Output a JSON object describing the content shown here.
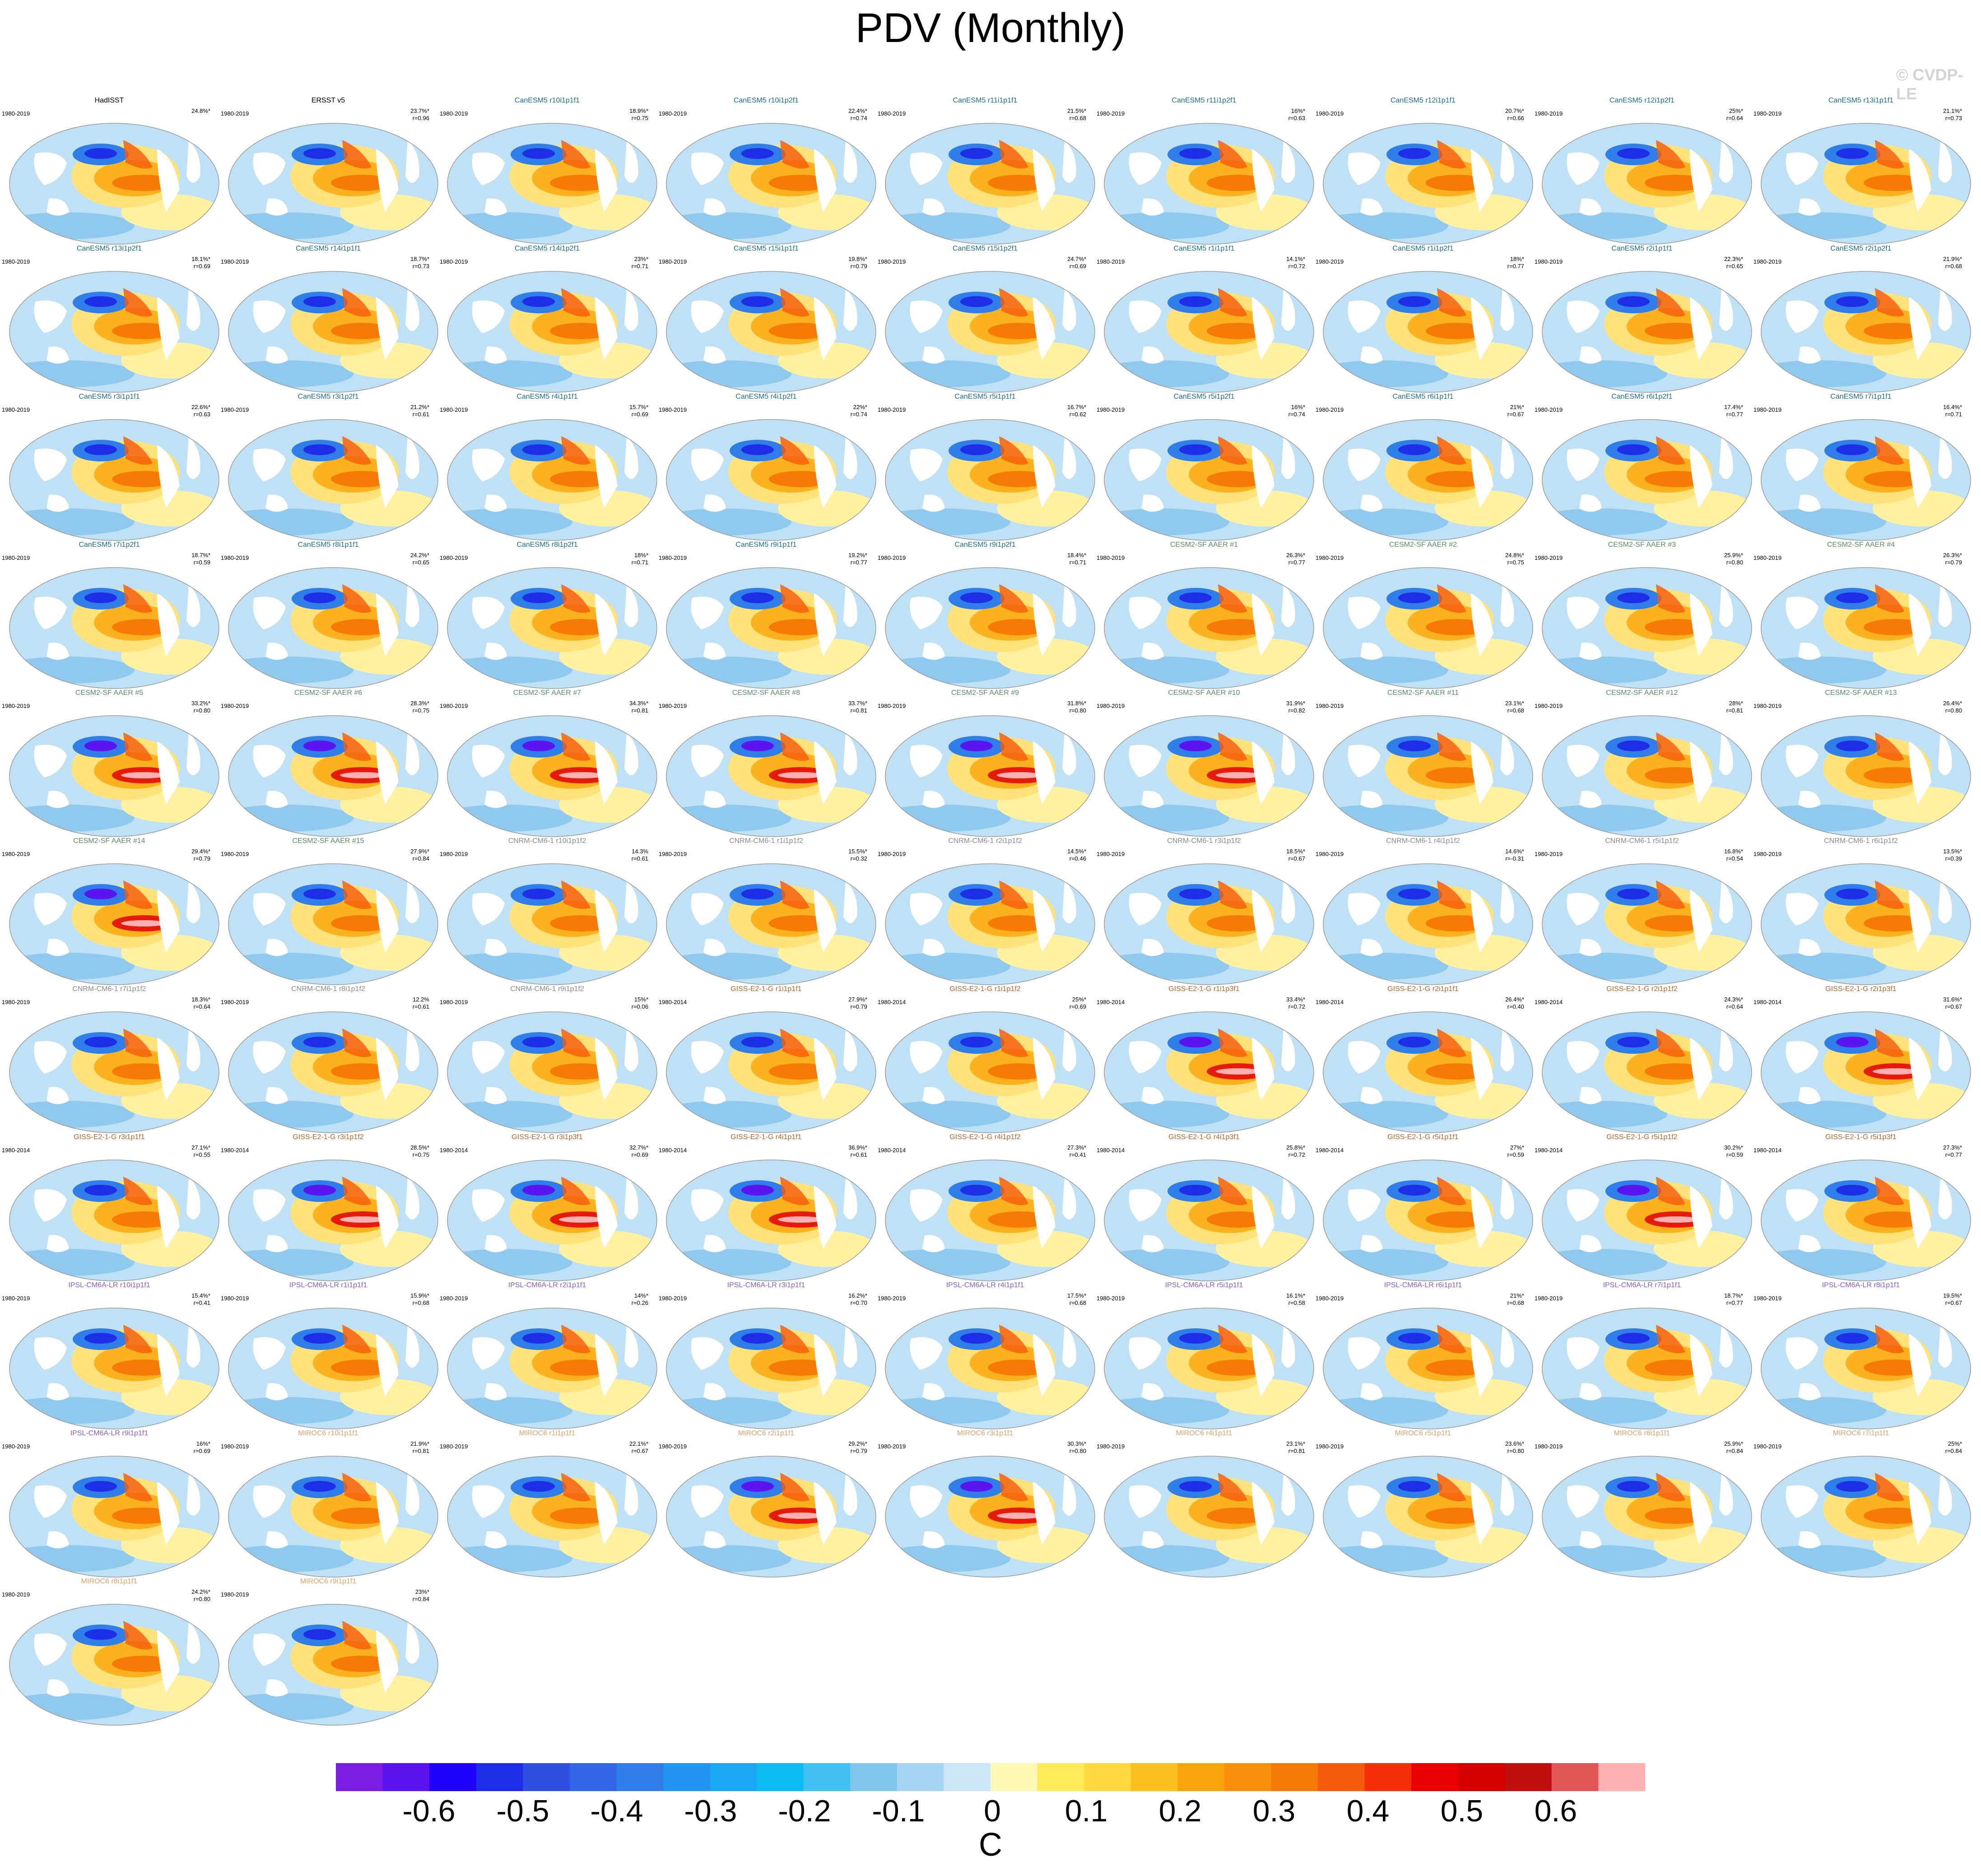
{
  "title": "PDV (Monthly)",
  "watermark": "© CVDP-LE",
  "chart_data": {
    "type": "heatmap",
    "description_kind": "panel grid of global SST regression maps",
    "panels": [
      {
        "title": "HadISST",
        "period": "1980-2019",
        "pct": "24.8%*",
        "r": "",
        "color": "#000000"
      },
      {
        "title": "ERSST v5",
        "period": "1980-2019",
        "pct": "23.7%*",
        "r": "r=0.96",
        "color": "#000000"
      },
      {
        "title": "CanESM5 r10i1p1f1",
        "period": "1980-2019",
        "pct": "18.9%*",
        "r": "r=0.75",
        "color": "#1a6f8c"
      },
      {
        "title": "CanESM5 r10i1p2f1",
        "period": "1980-2019",
        "pct": "22.4%*",
        "r": "r=0.74",
        "color": "#1a6f8c"
      },
      {
        "title": "CanESM5 r11i1p1f1",
        "period": "1980-2019",
        "pct": "21.5%*",
        "r": "r=0.68",
        "color": "#1a6f8c"
      },
      {
        "title": "CanESM5 r11i1p2f1",
        "period": "1980-2019",
        "pct": "16%*",
        "r": "r=0.63",
        "color": "#1a6f8c"
      },
      {
        "title": "CanESM5 r12i1p1f1",
        "period": "1980-2019",
        "pct": "20.7%*",
        "r": "r=0.66",
        "color": "#1a6f8c"
      },
      {
        "title": "CanESM5 r12i1p2f1",
        "period": "1980-2019",
        "pct": "25%*",
        "r": "r=0.64",
        "color": "#1a6f8c"
      },
      {
        "title": "CanESM5 r13i1p1f1",
        "period": "1980-2019",
        "pct": "21.1%*",
        "r": "r=0.73",
        "color": "#1a6f8c"
      },
      {
        "title": "CanESM5 r13i1p2f1",
        "period": "1980-2019",
        "pct": "18.1%*",
        "r": "r=0.69",
        "color": "#1a6f8c"
      },
      {
        "title": "CanESM5 r14i1p1f1",
        "period": "1980-2019",
        "pct": "18.7%*",
        "r": "r=0.73",
        "color": "#1a6f8c"
      },
      {
        "title": "CanESM5 r14i1p2f1",
        "period": "1980-2019",
        "pct": "23%*",
        "r": "r=0.71",
        "color": "#1a6f8c"
      },
      {
        "title": "CanESM5 r15i1p1f1",
        "period": "1980-2019",
        "pct": "19.8%*",
        "r": "r=0.79",
        "color": "#1a6f8c"
      },
      {
        "title": "CanESM5 r15i1p2f1",
        "period": "1980-2019",
        "pct": "24.7%*",
        "r": "r=0.69",
        "color": "#1a6f8c"
      },
      {
        "title": "CanESM5 r1i1p1f1",
        "period": "1980-2019",
        "pct": "14.1%*",
        "r": "r=0.72",
        "color": "#1a6f8c"
      },
      {
        "title": "CanESM5 r1i1p2f1",
        "period": "1980-2019",
        "pct": "18%*",
        "r": "r=0.77",
        "color": "#1a6f8c"
      },
      {
        "title": "CanESM5 r2i1p1f1",
        "period": "1980-2019",
        "pct": "22.3%*",
        "r": "r=0.65",
        "color": "#1a6f8c"
      },
      {
        "title": "CanESM5 r2i1p2f1",
        "period": "1980-2019",
        "pct": "21.9%*",
        "r": "r=0.68",
        "color": "#1a6f8c"
      },
      {
        "title": "CanESM5 r3i1p1f1",
        "period": "1980-2019",
        "pct": "22.6%*",
        "r": "r=0.63",
        "color": "#1a6f8c"
      },
      {
        "title": "CanESM5 r3i1p2f1",
        "period": "1980-2019",
        "pct": "21.2%*",
        "r": "r=0.61",
        "color": "#1a6f8c"
      },
      {
        "title": "CanESM5 r4i1p1f1",
        "period": "1980-2019",
        "pct": "15.7%*",
        "r": "r=0.69",
        "color": "#1a6f8c"
      },
      {
        "title": "CanESM5 r4i1p2f1",
        "period": "1980-2019",
        "pct": "22%*",
        "r": "r=0.74",
        "color": "#1a6f8c"
      },
      {
        "title": "CanESM5 r5i1p1f1",
        "period": "1980-2019",
        "pct": "16.7%*",
        "r": "r=0.62",
        "color": "#1a6f8c"
      },
      {
        "title": "CanESM5 r5i1p2f1",
        "period": "1980-2019",
        "pct": "16%*",
        "r": "r=0.74",
        "color": "#1a6f8c"
      },
      {
        "title": "CanESM5 r6i1p1f1",
        "period": "1980-2019",
        "pct": "21%*",
        "r": "r=0.67",
        "color": "#1a6f8c"
      },
      {
        "title": "CanESM5 r6i1p2f1",
        "period": "1980-2019",
        "pct": "17.4%*",
        "r": "r=0.77",
        "color": "#1a6f8c"
      },
      {
        "title": "CanESM5 r7i1p1f1",
        "period": "1980-2019",
        "pct": "16.4%*",
        "r": "r=0.71",
        "color": "#1a6f8c"
      },
      {
        "title": "CanESM5 r7i1p2f1",
        "period": "1980-2019",
        "pct": "18.7%*",
        "r": "r=0.59",
        "color": "#1a6f8c"
      },
      {
        "title": "CanESM5 r8i1p1f1",
        "period": "1980-2019",
        "pct": "24.2%*",
        "r": "r=0.65",
        "color": "#1a6f8c"
      },
      {
        "title": "CanESM5 r8i1p2f1",
        "period": "1980-2019",
        "pct": "18%*",
        "r": "r=0.71",
        "color": "#1a6f8c"
      },
      {
        "title": "CanESM5 r9i1p1f1",
        "period": "1980-2019",
        "pct": "19.2%*",
        "r": "r=0.77",
        "color": "#1a6f8c"
      },
      {
        "title": "CanESM5 r9i1p2f1",
        "period": "1980-2019",
        "pct": "18.4%*",
        "r": "r=0.71",
        "color": "#1a6f8c"
      },
      {
        "title": "CESM2-SF AAER #1",
        "period": "1980-2019",
        "pct": "26.3%*",
        "r": "r=0.77",
        "color": "#5a8a6a"
      },
      {
        "title": "CESM2-SF AAER #2",
        "period": "1980-2019",
        "pct": "24.8%*",
        "r": "r=0.75",
        "color": "#5a8a6a"
      },
      {
        "title": "CESM2-SF AAER #3",
        "period": "1980-2019",
        "pct": "25.9%*",
        "r": "r=0.80",
        "color": "#5a8a6a"
      },
      {
        "title": "CESM2-SF AAER #4",
        "period": "1980-2019",
        "pct": "26.3%*",
        "r": "r=0.79",
        "color": "#5a8a6a"
      },
      {
        "title": "CESM2-SF AAER #5",
        "period": "1980-2019",
        "pct": "33.2%*",
        "r": "r=0.80",
        "color": "#5a8a6a"
      },
      {
        "title": "CESM2-SF AAER #6",
        "period": "1980-2019",
        "pct": "28.3%*",
        "r": "r=0.75",
        "color": "#5a8a6a"
      },
      {
        "title": "CESM2-SF AAER #7",
        "period": "1980-2019",
        "pct": "34.3%*",
        "r": "r=0.81",
        "color": "#5a8a6a"
      },
      {
        "title": "CESM2-SF AAER #8",
        "period": "1980-2019",
        "pct": "33.7%*",
        "r": "r=0.81",
        "color": "#5a8a6a"
      },
      {
        "title": "CESM2-SF AAER #9",
        "period": "1980-2019",
        "pct": "31.8%*",
        "r": "r=0.80",
        "color": "#5a8a6a"
      },
      {
        "title": "CESM2-SF AAER #10",
        "period": "1980-2019",
        "pct": "31.9%*",
        "r": "r=0.82",
        "color": "#5a8a6a"
      },
      {
        "title": "CESM2-SF AAER #11",
        "period": "1980-2019",
        "pct": "23.1%*",
        "r": "r=0.68",
        "color": "#5a8a6a"
      },
      {
        "title": "CESM2-SF AAER #12",
        "period": "1980-2019",
        "pct": "28%*",
        "r": "r=0.81",
        "color": "#5a8a6a"
      },
      {
        "title": "CESM2-SF AAER #13",
        "period": "1980-2019",
        "pct": "26.4%*",
        "r": "r=0.80",
        "color": "#5a8a6a"
      },
      {
        "title": "CESM2-SF AAER #14",
        "period": "1980-2019",
        "pct": "29.4%*",
        "r": "r=0.79",
        "color": "#5a8a6a"
      },
      {
        "title": "CESM2-SF AAER #15",
        "period": "1980-2019",
        "pct": "27.9%*",
        "r": "r=0.84",
        "color": "#5a8a6a"
      },
      {
        "title": "CNRM-CM6-1 r10i1p1f2",
        "period": "1980-2019",
        "pct": "14.3%",
        "r": "r=0.61",
        "color": "#8a8a8a"
      },
      {
        "title": "CNRM-CM6-1 r1i1p1f2",
        "period": "1980-2019",
        "pct": "15.5%*",
        "r": "r=0.32",
        "color": "#8a8a8a"
      },
      {
        "title": "CNRM-CM6-1 r2i1p1f2",
        "period": "1980-2019",
        "pct": "14.5%*",
        "r": "r=0.46",
        "color": "#8a8a8a"
      },
      {
        "title": "CNRM-CM6-1 r3i1p1f2",
        "period": "1980-2019",
        "pct": "18.5%*",
        "r": "r=0.67",
        "color": "#8a8a8a"
      },
      {
        "title": "CNRM-CM6-1 r4i1p1f2",
        "period": "1980-2019",
        "pct": "14.6%*",
        "r": "r=-0.31",
        "color": "#8a8a8a"
      },
      {
        "title": "CNRM-CM6-1 r5i1p1f2",
        "period": "1980-2019",
        "pct": "16.8%*",
        "r": "r=0.54",
        "color": "#8a8a8a"
      },
      {
        "title": "CNRM-CM6-1 r6i1p1f2",
        "period": "1980-2019",
        "pct": "13.5%*",
        "r": "r=0.39",
        "color": "#8a8a8a"
      },
      {
        "title": "CNRM-CM6-1 r7i1p1f2",
        "period": "1980-2019",
        "pct": "18.3%*",
        "r": "r=0.64",
        "color": "#8a8a8a"
      },
      {
        "title": "CNRM-CM6-1 r8i1p1f2",
        "period": "1980-2019",
        "pct": "12.2%",
        "r": "r=0.61",
        "color": "#8a8a8a"
      },
      {
        "title": "CNRM-CM6-1 r9i1p1f2",
        "period": "1980-2019",
        "pct": "15%*",
        "r": "r=0.06",
        "color": "#8a8a8a"
      },
      {
        "title": "GISS-E2-1-G r1i1p1f1",
        "period": "1980-2014",
        "pct": "27.9%*",
        "r": "r=0.79",
        "color": "#b5652d"
      },
      {
        "title": "GISS-E2-1-G r1i1p1f2",
        "period": "1980-2014",
        "pct": "25%*",
        "r": "r=0.69",
        "color": "#b5652d"
      },
      {
        "title": "GISS-E2-1-G r1i1p3f1",
        "period": "1980-2014",
        "pct": "33.4%*",
        "r": "r=0.72",
        "color": "#b5652d"
      },
      {
        "title": "GISS-E2-1-G r2i1p1f1",
        "period": "1980-2014",
        "pct": "26.4%*",
        "r": "r=0.40",
        "color": "#b5652d"
      },
      {
        "title": "GISS-E2-1-G r2i1p1f2",
        "period": "1980-2014",
        "pct": "24.3%*",
        "r": "r=0.64",
        "color": "#b5652d"
      },
      {
        "title": "GISS-E2-1-G r2i1p3f1",
        "period": "1980-2014",
        "pct": "31.6%*",
        "r": "r=0.67",
        "color": "#b5652d"
      },
      {
        "title": "GISS-E2-1-G r3i1p1f1",
        "period": "1980-2014",
        "pct": "27.1%*",
        "r": "r=0.55",
        "color": "#b5652d"
      },
      {
        "title": "GISS-E2-1-G r3i1p1f2",
        "period": "1980-2014",
        "pct": "28.5%*",
        "r": "r=0.75",
        "color": "#b5652d"
      },
      {
        "title": "GISS-E2-1-G r3i1p3f1",
        "period": "1980-2014",
        "pct": "32.7%*",
        "r": "r=0.69",
        "color": "#b5652d"
      },
      {
        "title": "GISS-E2-1-G r4i1p1f1",
        "period": "1980-2014",
        "pct": "36.9%*",
        "r": "r=0.61",
        "color": "#b5652d"
      },
      {
        "title": "GISS-E2-1-G r4i1p1f2",
        "period": "1980-2014",
        "pct": "27.3%*",
        "r": "r=0.41",
        "color": "#b5652d"
      },
      {
        "title": "GISS-E2-1-G r4i1p3f1",
        "period": "1980-2014",
        "pct": "25.8%*",
        "r": "r=0.72",
        "color": "#b5652d"
      },
      {
        "title": "GISS-E2-1-G r5i1p1f1",
        "period": "1980-2014",
        "pct": "27%*",
        "r": "r=0.59",
        "color": "#b5652d"
      },
      {
        "title": "GISS-E2-1-G r5i1p1f2",
        "period": "1980-2014",
        "pct": "30.2%*",
        "r": "r=0.59",
        "color": "#b5652d"
      },
      {
        "title": "GISS-E2-1-G r5i1p3f1",
        "period": "1980-2014",
        "pct": "27.3%*",
        "r": "r=0.77",
        "color": "#b5652d"
      },
      {
        "title": "IPSL-CM6A-LR r10i1p1f1",
        "period": "1980-2019",
        "pct": "15.4%*",
        "r": "r=0.41",
        "color": "#8a5ad0"
      },
      {
        "title": "IPSL-CM6A-LR r1i1p1f1",
        "period": "1980-2019",
        "pct": "15.9%*",
        "r": "r=0.68",
        "color": "#8a5ad0"
      },
      {
        "title": "IPSL-CM6A-LR r2i1p1f1",
        "period": "1980-2019",
        "pct": "14%*",
        "r": "r=0.26",
        "color": "#8a5ad0"
      },
      {
        "title": "IPSL-CM6A-LR r3i1p1f1",
        "period": "1980-2019",
        "pct": "16.2%*",
        "r": "r=0.70",
        "color": "#8a5ad0"
      },
      {
        "title": "IPSL-CM6A-LR r4i1p1f1",
        "period": "1980-2019",
        "pct": "17.5%*",
        "r": "r=0.68",
        "color": "#8a5ad0"
      },
      {
        "title": "IPSL-CM6A-LR r5i1p1f1",
        "period": "1980-2019",
        "pct": "16.1%*",
        "r": "r=0.58",
        "color": "#8a5ad0"
      },
      {
        "title": "IPSL-CM6A-LR r6i1p1f1",
        "period": "1980-2019",
        "pct": "21%*",
        "r": "r=0.68",
        "color": "#8a5ad0"
      },
      {
        "title": "IPSL-CM6A-LR r7i1p1f1",
        "period": "1980-2019",
        "pct": "18.7%*",
        "r": "r=0.77",
        "color": "#8a5ad0"
      },
      {
        "title": "IPSL-CM6A-LR r8i1p1f1",
        "period": "1980-2019",
        "pct": "19.5%*",
        "r": "r=0.67",
        "color": "#8a5ad0"
      },
      {
        "title": "IPSL-CM6A-LR r9i1p1f1",
        "period": "1980-2019",
        "pct": "16%*",
        "r": "r=0.69",
        "color": "#8a5ad0"
      },
      {
        "title": "MIROC6 r10i1p1f1",
        "period": "1980-2019",
        "pct": "21.9%*",
        "r": "r=0.81",
        "color": "#e3a06a"
      },
      {
        "title": "MIROC6 r1i1p1f1",
        "period": "1980-2019",
        "pct": "22.1%*",
        "r": "r=0.67",
        "color": "#e3a06a"
      },
      {
        "title": "MIROC6 r2i1p1f1",
        "period": "1980-2019",
        "pct": "29.2%*",
        "r": "r=0.79",
        "color": "#e3a06a"
      },
      {
        "title": "MIROC6 r3i1p1f1",
        "period": "1980-2019",
        "pct": "30.3%*",
        "r": "r=0.80",
        "color": "#e3a06a"
      },
      {
        "title": "MIROC6 r4i1p1f1",
        "period": "1980-2019",
        "pct": "23.1%*",
        "r": "r=0.81",
        "color": "#e3a06a"
      },
      {
        "title": "MIROC6 r5i1p1f1",
        "period": "1980-2019",
        "pct": "23.6%*",
        "r": "r=0.80",
        "color": "#e3a06a"
      },
      {
        "title": "MIROC6 r6i1p1f1",
        "period": "1980-2019",
        "pct": "25.9%*",
        "r": "r=0.84",
        "color": "#e3a06a"
      },
      {
        "title": "MIROC6 r7i1p1f1",
        "period": "1980-2019",
        "pct": "25%*",
        "r": "r=0.84",
        "color": "#e3a06a"
      },
      {
        "title": "MIROC6 r8i1p1f1",
        "period": "1980-2019",
        "pct": "24.2%*",
        "r": "r=0.80",
        "color": "#e3a06a"
      },
      {
        "title": "MIROC6 r9i1p1f1",
        "period": "1980-2019",
        "pct": "23%*",
        "r": "r=0.84",
        "color": "#e3a06a"
      }
    ],
    "colorbar": {
      "unit": "C",
      "ticks": [
        "-0.6",
        "-0.5",
        "-0.4",
        "-0.3",
        "-0.2",
        "-0.1",
        "0",
        "0.1",
        "0.2",
        "0.3",
        "0.4",
        "0.5",
        "0.6"
      ],
      "colors": [
        "#7c1de6",
        "#5a14f0",
        "#1e00ff",
        "#1e2ee6",
        "#2e4fe0",
        "#3366e6",
        "#2f7de8",
        "#2193f0",
        "#1aa8f5",
        "#0bbbf2",
        "#42c0f0",
        "#7fc6ec",
        "#a6d6f3",
        "#cbe7f7",
        "#fff9b5",
        "#ffea5c",
        "#ffd93d",
        "#fbbf1e",
        "#f9a40a",
        "#f98f0c",
        "#f77a07",
        "#f55a0a",
        "#f42f0a",
        "#ea0000",
        "#d60000",
        "#c00f0f",
        "#e05555",
        "#ffb0b0"
      ]
    }
  }
}
